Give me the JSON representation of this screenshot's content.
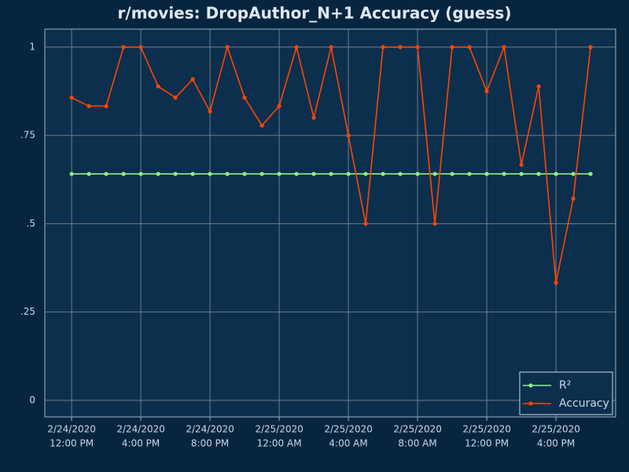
{
  "chart_data": {
    "type": "line",
    "title": "r/movies: DropAuthor_N+1 Accuracy (guess)",
    "x": [
      "2020-02-24T12:00",
      "2020-02-24T13:00",
      "2020-02-24T14:00",
      "2020-02-24T15:00",
      "2020-02-24T16:00",
      "2020-02-24T17:00",
      "2020-02-24T18:00",
      "2020-02-24T19:00",
      "2020-02-24T20:00",
      "2020-02-24T21:00",
      "2020-02-24T22:00",
      "2020-02-24T23:00",
      "2020-02-25T00:00",
      "2020-02-25T01:00",
      "2020-02-25T02:00",
      "2020-02-25T03:00",
      "2020-02-25T04:00",
      "2020-02-25T05:00",
      "2020-02-25T06:00",
      "2020-02-25T07:00",
      "2020-02-25T08:00",
      "2020-02-25T09:00",
      "2020-02-25T10:00",
      "2020-02-25T11:00",
      "2020-02-25T12:00",
      "2020-02-25T13:00",
      "2020-02-25T14:00",
      "2020-02-25T15:00",
      "2020-02-25T16:00",
      "2020-02-25T17:00",
      "2020-02-25T18:00"
    ],
    "series": [
      {
        "name": "R²",
        "color": "#90ee90",
        "values": [
          0.641,
          0.641,
          0.641,
          0.641,
          0.641,
          0.641,
          0.641,
          0.641,
          0.641,
          0.641,
          0.641,
          0.641,
          0.641,
          0.641,
          0.641,
          0.641,
          0.641,
          0.641,
          0.641,
          0.641,
          0.641,
          0.641,
          0.641,
          0.641,
          0.641,
          0.641,
          0.641,
          0.641,
          0.641,
          0.641,
          0.641
        ]
      },
      {
        "name": "Accuracy",
        "color": "#ff4500",
        "values": [
          0.857,
          0.833,
          0.833,
          1,
          1,
          0.889,
          0.857,
          0.909,
          0.818,
          1,
          0.857,
          0.778,
          0.833,
          1,
          0.8,
          1,
          0.75,
          0.5,
          1,
          1,
          1,
          0.5,
          1,
          1,
          0.875,
          1,
          0.667,
          0.889,
          0.333,
          0.571,
          1
        ]
      }
    ],
    "xlim": [
      "2020-02-24T10:27",
      "2020-02-25T19:27"
    ],
    "xticks": [
      {
        "value": "2020-02-24T12:00",
        "label": [
          "2/24/2020",
          "12:00 PM"
        ]
      },
      {
        "value": "2020-02-24T16:00",
        "label": [
          "2/24/2020",
          "4:00 PM"
        ]
      },
      {
        "value": "2020-02-24T20:00",
        "label": [
          "2/24/2020",
          "8:00 PM"
        ]
      },
      {
        "value": "2020-02-25T00:00",
        "label": [
          "2/25/2020",
          "12:00 AM"
        ]
      },
      {
        "value": "2020-02-25T04:00",
        "label": [
          "2/25/2020",
          "4:00 AM"
        ]
      },
      {
        "value": "2020-02-25T08:00",
        "label": [
          "2/25/2020",
          "8:00 AM"
        ]
      },
      {
        "value": "2020-02-25T12:00",
        "label": [
          "2/25/2020",
          "12:00 PM"
        ]
      },
      {
        "value": "2020-02-25T16:00",
        "label": [
          "2/25/2020",
          "4:00 PM"
        ]
      }
    ],
    "ylim": [
      -0.047,
      1.051
    ],
    "yticks": [
      0,
      {
        "value": 0.25,
        "label": ".25"
      },
      {
        "value": 0.5,
        "label": ".5"
      },
      {
        "value": 0.75,
        "label": ".75"
      },
      1
    ],
    "grid": true,
    "legend": "bottom-right"
  }
}
